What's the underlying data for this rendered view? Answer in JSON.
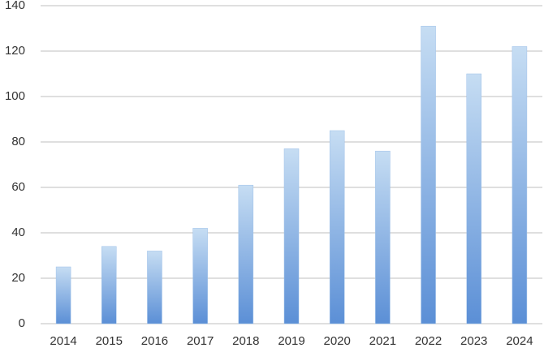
{
  "chart_data": {
    "type": "bar",
    "categories": [
      "2014",
      "2015",
      "2016",
      "2017",
      "2018",
      "2019",
      "2020",
      "2021",
      "2022",
      "2023",
      "2024"
    ],
    "values": [
      25,
      34,
      32,
      42,
      61,
      77,
      85,
      76,
      131,
      110,
      122
    ],
    "color": "#5b8fd6",
    "ylim": [
      0,
      140
    ],
    "yticks": [
      0,
      20,
      40,
      60,
      80,
      100,
      120,
      140
    ],
    "grid": true
  }
}
